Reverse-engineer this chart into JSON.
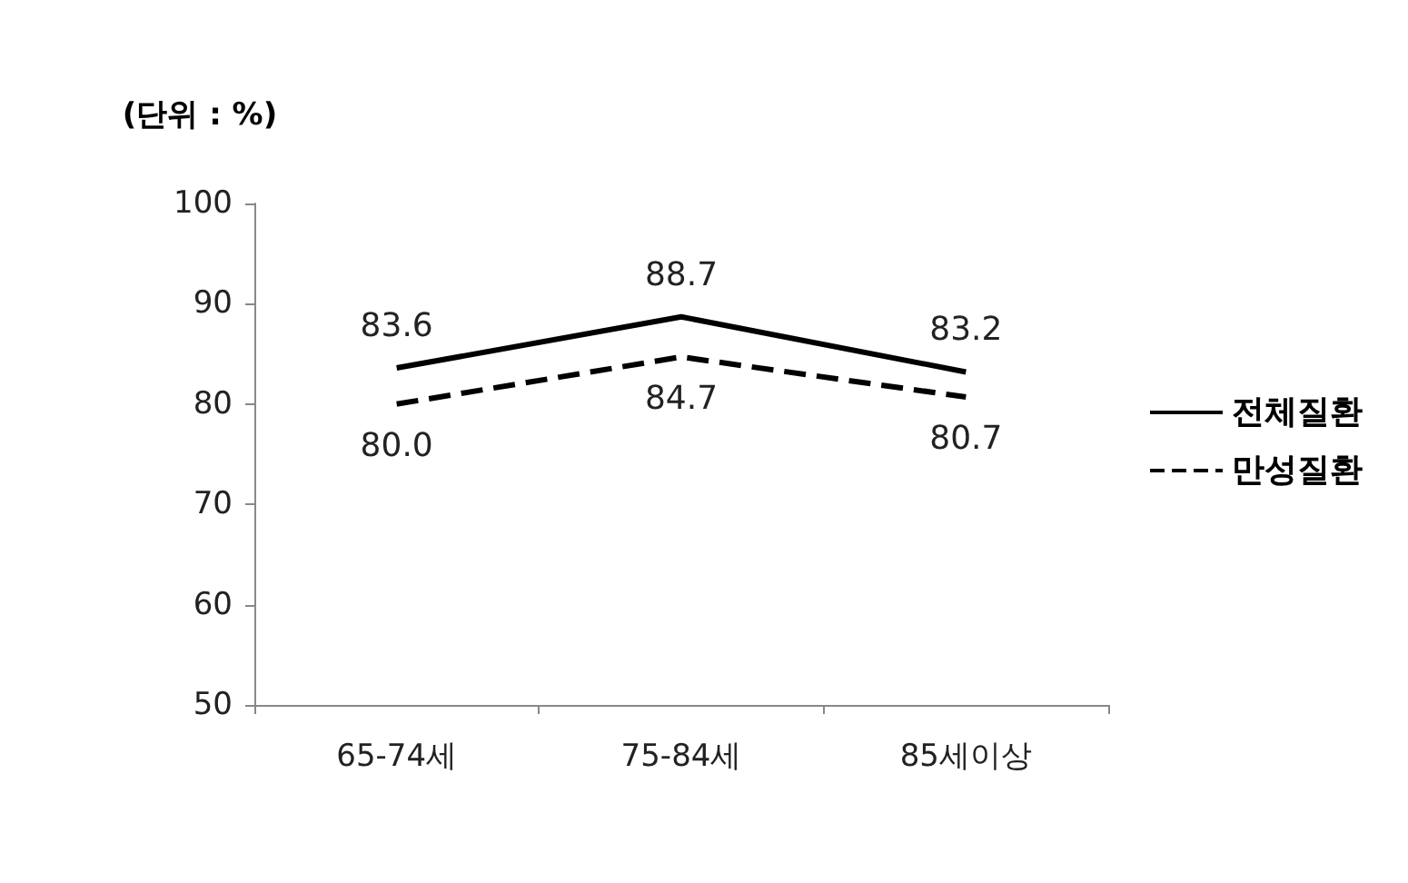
{
  "chart_data": {
    "type": "line",
    "ylabel": "(단위 : %)",
    "categories": [
      "65-74세",
      "75-84세",
      "85세이상"
    ],
    "series": [
      {
        "name": "전체질환",
        "color": "#000000",
        "line_style": "solid",
        "values": [
          83.6,
          88.7,
          83.2
        ],
        "value_labels": [
          "83.6",
          "88.7",
          "83.2"
        ]
      },
      {
        "name": "만성질환",
        "color": "#000000",
        "line_style": "dashed",
        "values": [
          80.0,
          84.7,
          80.7
        ],
        "value_labels": [
          "80.0",
          "84.7",
          "80.7"
        ]
      }
    ],
    "ylim": [
      50,
      100
    ],
    "yticks": [
      50,
      60,
      70,
      80,
      90,
      100
    ],
    "grid": false,
    "legend": "right",
    "marker": "none"
  }
}
